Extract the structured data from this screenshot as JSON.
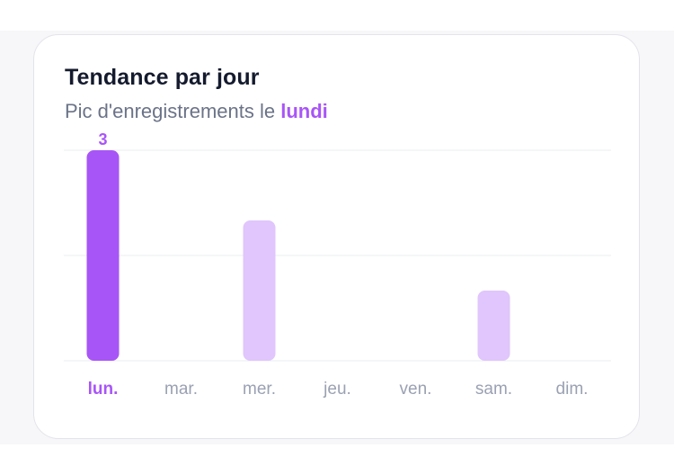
{
  "card": {
    "title": "Tendance par jour",
    "subtitle_prefix": "Pic d'enregistrements le ",
    "subtitle_highlight": "lundi"
  },
  "chart_data": {
    "type": "bar",
    "title": "Tendance par jour",
    "subtitle": "Pic d'enregistrements le lundi",
    "categories": [
      "lun.",
      "mar.",
      "mer.",
      "jeu.",
      "ven.",
      "sam.",
      "dim."
    ],
    "values": [
      3,
      0,
      2,
      0,
      0,
      1,
      0
    ],
    "highlight_index": 0,
    "data_labels": [
      {
        "index": 0,
        "text": "3"
      }
    ],
    "ylim": [
      0,
      3
    ],
    "gridlines": [
      0,
      1.5,
      3
    ],
    "grid": true,
    "legend": "none",
    "colors": {
      "highlight": "#a855f7",
      "bar": "#e0c6fc",
      "grid": "#eef0f4",
      "tick": "#9aa1b2"
    }
  }
}
